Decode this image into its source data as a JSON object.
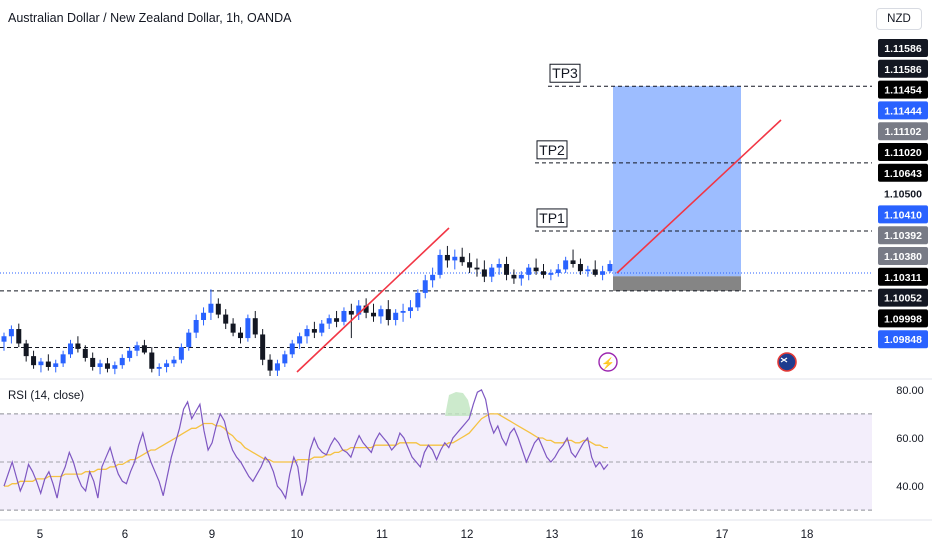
{
  "header": {
    "title": "Australian Dollar / New Zealand Dollar, 1h, OANDA",
    "currency_button": "NZD"
  },
  "colors": {
    "up": "#2962ff",
    "down": "#131722",
    "trend": "#f23645",
    "target": "#8cb2ff",
    "stop": "#787878",
    "rsi": "#7e57c2",
    "rsi_ma": "#f5c242",
    "current": "#2962ff"
  },
  "chart_data": [
    {
      "type": "candlestick",
      "symbol": "AUDNZD",
      "timeframe": "1h",
      "ylim": [
        1.0984,
        1.117
      ],
      "x_ticks": [
        "5",
        "6",
        "9",
        "10",
        "11",
        "12",
        "13",
        "16",
        "17",
        "18"
      ],
      "candles": [
        [
          1.1003,
          1.1008,
          1.0998,
          1.1006
        ],
        [
          1.1006,
          1.1012,
          1.1002,
          1.101
        ],
        [
          1.101,
          1.1013,
          1.1,
          1.1002
        ],
        [
          1.1002,
          1.1004,
          1.0992,
          1.0995
        ],
        [
          1.0995,
          1.0998,
          1.0988,
          1.099
        ],
        [
          1.099,
          1.0994,
          1.0986,
          1.0992
        ],
        [
          1.0992,
          1.0996,
          1.0987,
          1.0989
        ],
        [
          1.0989,
          1.0993,
          1.0986,
          1.0991
        ],
        [
          1.0991,
          1.0998,
          1.0989,
          1.0996
        ],
        [
          1.0996,
          1.1004,
          1.0994,
          1.1002
        ],
        [
          1.1002,
          1.1006,
          1.0997,
          1.0999
        ],
        [
          1.0999,
          1.1001,
          1.0992,
          1.0994
        ],
        [
          1.0994,
          1.0997,
          1.0987,
          1.0989
        ],
        [
          1.0989,
          1.0993,
          1.0985,
          1.0991
        ],
        [
          1.0991,
          1.0994,
          1.0986,
          1.0988
        ],
        [
          1.0988,
          1.0992,
          1.0985,
          1.099
        ],
        [
          1.099,
          1.0996,
          1.0988,
          1.0994
        ],
        [
          1.0994,
          1.1,
          1.0992,
          1.0998
        ],
        [
          1.0998,
          1.1003,
          1.0995,
          1.1001
        ],
        [
          1.1001,
          1.1004,
          1.0996,
          1.0997
        ],
        [
          1.0997,
          1.1,
          1.0986,
          1.0988
        ],
        [
          1.0988,
          1.0991,
          1.0984,
          1.0989
        ],
        [
          1.0989,
          1.0993,
          1.0986,
          1.0991
        ],
        [
          1.0991,
          1.0995,
          1.0989,
          1.0993
        ],
        [
          1.0993,
          1.1002,
          1.0991,
          1.1
        ],
        [
          1.1,
          1.101,
          1.0998,
          1.1008
        ],
        [
          1.1008,
          1.1018,
          1.1005,
          1.1015
        ],
        [
          1.1015,
          1.1022,
          1.1012,
          1.1019
        ],
        [
          1.1019,
          1.1032,
          1.1015,
          1.1024
        ],
        [
          1.1024,
          1.1027,
          1.1016,
          1.1018
        ],
        [
          1.1018,
          1.1021,
          1.101,
          1.1013
        ],
        [
          1.1013,
          1.1016,
          1.1006,
          1.1008
        ],
        [
          1.1008,
          1.1011,
          1.1002,
          1.1005
        ],
        [
          1.1005,
          1.1018,
          1.1003,
          1.1016
        ],
        [
          1.1016,
          1.102,
          1.1005,
          1.1007
        ],
        [
          1.1007,
          1.101,
          1.099,
          1.0993
        ],
        [
          1.0993,
          1.0996,
          1.0984,
          1.0987
        ],
        [
          1.0987,
          1.0993,
          1.0984,
          1.0991
        ],
        [
          1.0991,
          1.0998,
          1.0989,
          1.0996
        ],
        [
          1.0996,
          1.1004,
          1.0994,
          1.1002
        ],
        [
          1.1002,
          1.1008,
          1.0999,
          1.1006
        ],
        [
          1.1006,
          1.1012,
          1.1002,
          1.101
        ],
        [
          1.101,
          1.1014,
          1.1005,
          1.1008
        ],
        [
          1.1008,
          1.1015,
          1.1006,
          1.1013
        ],
        [
          1.1013,
          1.1018,
          1.101,
          1.1016
        ],
        [
          1.1016,
          1.102,
          1.1011,
          1.1014
        ],
        [
          1.1014,
          1.1022,
          1.1012,
          1.102
        ],
        [
          1.102,
          1.1024,
          1.1005,
          1.1018
        ],
        [
          1.1018,
          1.1026,
          1.1015,
          1.1023
        ],
        [
          1.1023,
          1.1027,
          1.1016,
          1.1019
        ],
        [
          1.1019,
          1.1024,
          1.1014,
          1.1017
        ],
        [
          1.1017,
          1.1023,
          1.1013,
          1.1021
        ],
        [
          1.1021,
          1.1026,
          1.1012,
          1.1015
        ],
        [
          1.1015,
          1.1021,
          1.1012,
          1.1019
        ],
        [
          1.1019,
          1.1024,
          1.1014,
          1.102
        ],
        [
          1.102,
          1.1026,
          1.1016,
          1.1022
        ],
        [
          1.1022,
          1.1032,
          1.102,
          1.103
        ],
        [
          1.103,
          1.104,
          1.1027,
          1.1037
        ],
        [
          1.1037,
          1.1044,
          1.1033,
          1.104
        ],
        [
          1.104,
          1.1054,
          1.1038,
          1.1051
        ],
        [
          1.1051,
          1.1056,
          1.1044,
          1.1048
        ],
        [
          1.1048,
          1.1054,
          1.1043,
          1.105
        ],
        [
          1.105,
          1.1055,
          1.1045,
          1.1047
        ],
        [
          1.1047,
          1.1052,
          1.1041,
          1.1044
        ],
        [
          1.1044,
          1.1049,
          1.1039,
          1.1043
        ],
        [
          1.1043,
          1.1048,
          1.1036,
          1.1039
        ],
        [
          1.1039,
          1.1046,
          1.1036,
          1.1044
        ],
        [
          1.1044,
          1.1049,
          1.104,
          1.1046
        ],
        [
          1.1046,
          1.105,
          1.1037,
          1.104
        ],
        [
          1.104,
          1.1043,
          1.1035,
          1.1038
        ],
        [
          1.1038,
          1.1042,
          1.1034,
          1.104
        ],
        [
          1.104,
          1.1046,
          1.1037,
          1.1044
        ],
        [
          1.1044,
          1.1049,
          1.104,
          1.1042
        ],
        [
          1.1042,
          1.1046,
          1.1038,
          1.104
        ],
        [
          1.104,
          1.1043,
          1.1037,
          1.1041
        ],
        [
          1.1041,
          1.1046,
          1.1039,
          1.1043
        ],
        [
          1.1043,
          1.105,
          1.1041,
          1.1048
        ],
        [
          1.1048,
          1.1054,
          1.1044,
          1.1046
        ],
        [
          1.1046,
          1.1049,
          1.104,
          1.1042
        ],
        [
          1.1042,
          1.1045,
          1.1039,
          1.1043
        ],
        [
          1.1043,
          1.1048,
          1.1039,
          1.104
        ],
        [
          1.104,
          1.1045,
          1.1037,
          1.1042
        ],
        [
          1.1042,
          1.1048,
          1.1041,
          1.1046
        ]
      ],
      "trendlines": [
        {
          "from": [
            9.9,
            1.0986
          ],
          "to": [
            11.8,
            1.1058
          ]
        },
        {
          "from": [
            14.6,
            1.1039
          ],
          "to": [
            17.5,
            1.1132
          ]
        }
      ],
      "levels": [
        {
          "label": "TP3",
          "price": 1.11444
        },
        {
          "label": "TP2",
          "price": 1.1102
        },
        {
          "label": "TP1",
          "price": 1.10643
        },
        {
          "label": "",
          "price": 1.10311
        },
        {
          "label": "",
          "price": 1.09998
        }
      ],
      "position": {
        "type": "long",
        "entry": 1.10392,
        "target": 1.11444,
        "stop": 1.10311,
        "from_x": 14.6,
        "to_x": 17.2
      },
      "current_price": 1.1041,
      "price_labels": [
        {
          "text": "1.11586",
          "style": "dark"
        },
        {
          "text": "1.11586",
          "style": "dark"
        },
        {
          "text": "1.11454",
          "style": "black"
        },
        {
          "text": "1.11444",
          "style": "blue"
        },
        {
          "text": "1.11102",
          "style": "gray"
        },
        {
          "text": "1.11020",
          "style": "black"
        },
        {
          "text": "1.10643",
          "style": "black"
        },
        {
          "text": "1.10500",
          "style": "plain"
        },
        {
          "text": "1.10410",
          "style": "blue"
        },
        {
          "text": "1.10392",
          "style": "gray"
        },
        {
          "text": "1.10380",
          "style": "gray"
        },
        {
          "text": "1.10311",
          "style": "black"
        },
        {
          "text": "1.10052",
          "style": "dark"
        },
        {
          "text": "1.09998",
          "style": "black"
        },
        {
          "text": "1.09848",
          "style": "blue"
        }
      ],
      "events": [
        {
          "icon": "lightning-icon",
          "x": 14.6
        },
        {
          "icon": "australia-flag-icon",
          "x": 17.8
        }
      ]
    },
    {
      "type": "line",
      "title": "RSI (14, close)",
      "ylim": [
        28,
        82
      ],
      "y_ticks": [
        "80.00",
        "60.00",
        "40.00"
      ],
      "bands": {
        "upper": 70,
        "middle": 50,
        "lower": 30
      },
      "series": [
        {
          "values": [
            40,
            45,
            50,
            44,
            38,
            42,
            49,
            46,
            42,
            37,
            43,
            46,
            41,
            35,
            44,
            48,
            54,
            50,
            44,
            40,
            38,
            46,
            42,
            35,
            48,
            52,
            56,
            50,
            45,
            42,
            41,
            46,
            50,
            57,
            62,
            55,
            50,
            46,
            42,
            36,
            44,
            52,
            58,
            64,
            72,
            75,
            68,
            71,
            74,
            63,
            55,
            58,
            65,
            70,
            67,
            60,
            55,
            52,
            50,
            47,
            44,
            42,
            45,
            48,
            52,
            50,
            46,
            40,
            38,
            35,
            45,
            52,
            48,
            36,
            42,
            55,
            60,
            56,
            54,
            53,
            57,
            60,
            58,
            55,
            54,
            52,
            57,
            61,
            58,
            56,
            54,
            59,
            62,
            60,
            58,
            55,
            57,
            62,
            60,
            56,
            52,
            50,
            48,
            54,
            57,
            55,
            51,
            55,
            58,
            56,
            60,
            62,
            64,
            66,
            68,
            74,
            79,
            80,
            76,
            67,
            62,
            65,
            60,
            57,
            62,
            64,
            60,
            55,
            50,
            54,
            58,
            60,
            56,
            52,
            50,
            52,
            55,
            57,
            60,
            54,
            52,
            55,
            58,
            60,
            52,
            48,
            50,
            47,
            49
          ]
        },
        {
          "values": [
            40,
            40,
            41,
            41,
            42,
            42,
            42,
            42,
            43,
            43,
            43,
            44,
            44,
            44,
            44,
            45,
            45,
            45,
            45,
            45,
            46,
            46,
            46,
            47,
            47,
            47,
            48,
            48,
            49,
            49,
            50,
            51,
            51,
            52,
            53,
            54,
            55,
            55,
            56,
            57,
            58,
            59,
            60,
            61,
            62,
            63,
            64,
            64,
            65,
            66,
            66,
            66,
            65,
            65,
            64,
            62,
            61,
            59,
            58,
            56,
            55,
            54,
            53,
            52,
            51,
            51,
            50,
            50,
            50,
            50,
            50,
            50,
            51,
            51,
            51,
            51,
            52,
            52,
            52,
            53,
            53,
            54,
            54,
            55,
            55,
            56,
            56,
            56,
            56,
            56,
            56,
            57,
            57,
            57,
            57,
            57,
            57,
            58,
            58,
            58,
            58,
            58,
            57,
            57,
            57,
            57,
            57,
            57,
            57,
            58,
            58,
            59,
            60,
            61,
            62,
            64,
            66,
            68,
            69,
            70,
            70,
            70,
            69,
            68,
            67,
            66,
            65,
            64,
            63,
            62,
            61,
            60,
            60,
            59,
            59,
            58,
            58,
            58,
            59,
            59,
            58,
            58,
            59,
            59,
            58,
            57,
            57,
            56,
            56
          ]
        }
      ]
    }
  ]
}
